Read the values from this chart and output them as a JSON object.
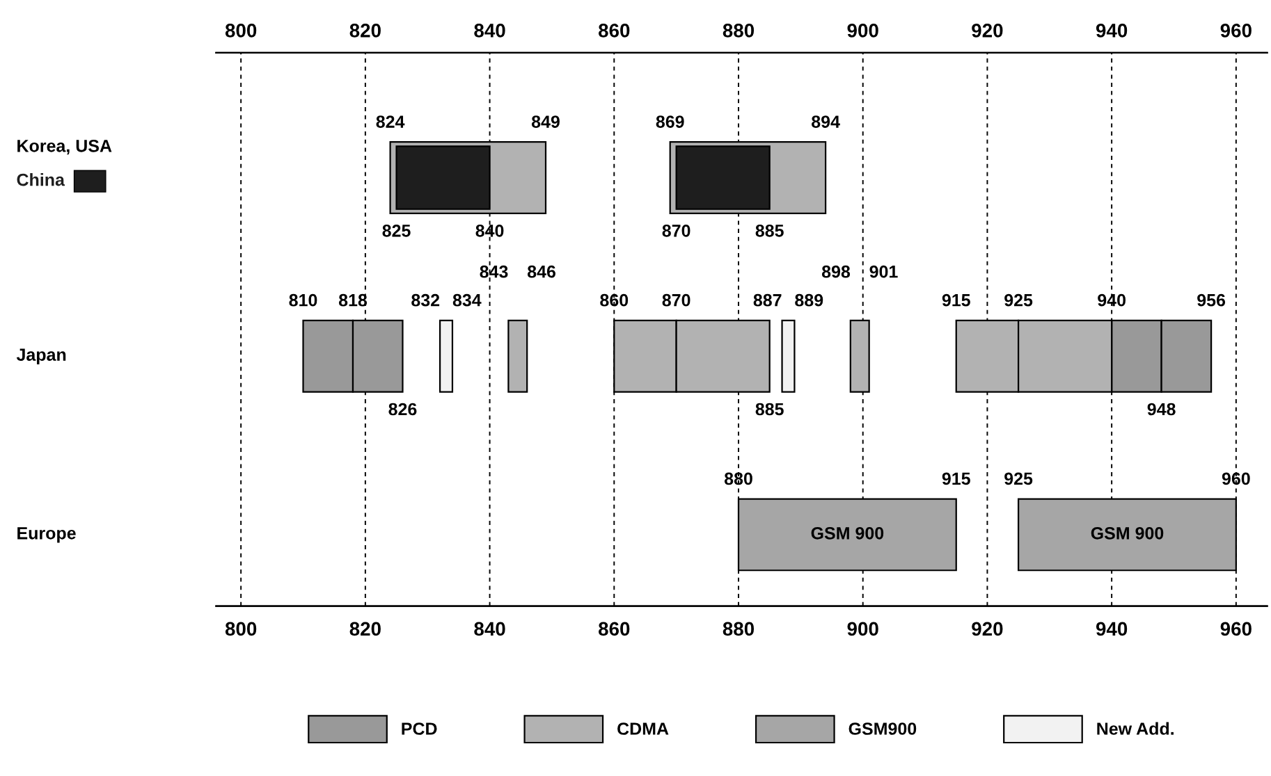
{
  "chart_data": {
    "type": "bar",
    "orientation": "horizontal",
    "categories": [
      "Korea, USA",
      "Japan",
      "Europe"
    ],
    "series": [
      {
        "name": "PCD",
        "color": "#999999",
        "values": [
          null,
          8,
          null
        ],
        "base": [
          null,
          810,
          null
        ]
      },
      {
        "color": "#999999",
        "values": [
          null,
          8,
          null
        ],
        "base": [
          null,
          818,
          null
        ]
      },
      {
        "color": "#999999",
        "values": [
          null,
          8,
          null
        ],
        "base": [
          null,
          940,
          null
        ]
      },
      {
        "color": "#999999",
        "values": [
          null,
          8,
          null
        ],
        "base": [
          null,
          948,
          null
        ]
      },
      {
        "name": "CDMA",
        "color": "#b2b2b2",
        "values": [
          25,
          3,
          null
        ],
        "base": [
          824,
          843,
          null
        ]
      },
      {
        "color": "#b2b2b2",
        "values": [
          25,
          10,
          null
        ],
        "base": [
          869,
          860,
          null
        ]
      },
      {
        "color": "#b2b2b2",
        "values": [
          null,
          15,
          null
        ],
        "base": [
          null,
          870,
          null
        ]
      },
      {
        "color": "#b2b2b2",
        "values": [
          null,
          3,
          null
        ],
        "base": [
          null,
          898,
          null
        ]
      },
      {
        "color": "#b2b2b2",
        "values": [
          null,
          10,
          null
        ],
        "base": [
          null,
          915,
          null
        ]
      },
      {
        "color": "#b2b2b2",
        "values": [
          null,
          15,
          null
        ],
        "base": [
          null,
          925,
          null
        ]
      },
      {
        "name": "GSM900",
        "color": "#a6a6a6",
        "values": [
          null,
          null,
          35
        ],
        "base": [
          null,
          null,
          880
        ]
      },
      {
        "color": "#a6a6a6",
        "values": [
          null,
          null,
          35
        ],
        "base": [
          null,
          null,
          925
        ]
      },
      {
        "name": "New Add.",
        "color": "#f2f2f2",
        "values": [
          null,
          2,
          null
        ],
        "base": [
          null,
          832,
          null
        ]
      },
      {
        "color": "#f2f2f2",
        "values": [
          null,
          2,
          null
        ],
        "base": [
          null,
          887,
          null
        ]
      },
      {
        "name": "China",
        "color": "#1e1e1e",
        "values": [
          15,
          null,
          null
        ],
        "base": [
          825,
          null,
          null
        ]
      },
      {
        "color": "#1e1e1e",
        "values": [
          15,
          null,
          null
        ],
        "base": [
          870,
          null,
          null
        ]
      }
    ],
    "xlim": [
      796,
      965
    ],
    "xticks": [
      800,
      820,
      840,
      860,
      880,
      900,
      920,
      940,
      960
    ],
    "x2lim": [
      796,
      965
    ],
    "x2ticks": [
      800,
      820,
      840,
      860,
      880,
      900,
      920,
      940,
      960
    ],
    "grid": "x",
    "legend": "bottom",
    "annotations": [
      "824",
      "849",
      "869",
      "894",
      "825",
      "840",
      "870",
      "885",
      "810",
      "818",
      "832",
      "834",
      "843",
      "846",
      "860",
      "870",
      "887",
      "889",
      "898",
      "901",
      "915",
      "925",
      "940",
      "956",
      "826",
      "885",
      "948",
      "880",
      "915",
      "925",
      "960",
      "GSM 900",
      "GSM 900"
    ]
  }
}
